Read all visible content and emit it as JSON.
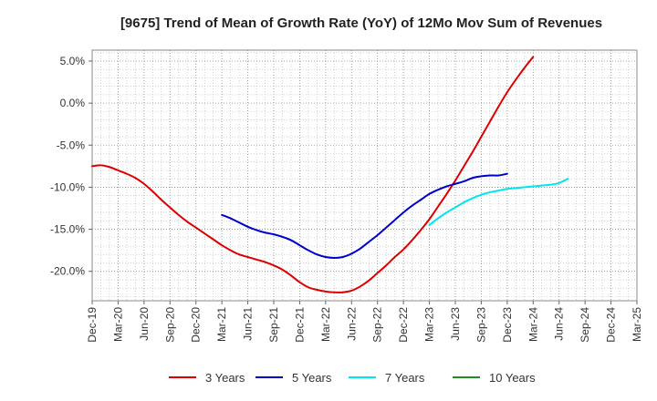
{
  "chart_data": {
    "type": "line",
    "title": "[9675]  Trend of Mean of Growth Rate (YoY) of 12Mo Mov Sum of Revenues",
    "xlabel": "",
    "ylabel": "",
    "ylim": [
      -23.5,
      6.3
    ],
    "grid": true,
    "legend_position": "bottom",
    "x_ticks": [
      "Dec-19",
      "Mar-20",
      "Jun-20",
      "Sep-20",
      "Dec-20",
      "Mar-21",
      "Jun-21",
      "Sep-21",
      "Dec-21",
      "Mar-22",
      "Jun-22",
      "Sep-22",
      "Dec-22",
      "Mar-23",
      "Jun-23",
      "Sep-23",
      "Dec-23",
      "Mar-24",
      "Jun-24",
      "Sep-24",
      "Dec-24",
      "Mar-25"
    ],
    "y_ticks": [
      {
        "value": 5,
        "label": "5.0%"
      },
      {
        "value": 0,
        "label": "0.0%"
      },
      {
        "value": -5,
        "label": "-5.0%"
      },
      {
        "value": -10,
        "label": "-10.0%"
      },
      {
        "value": -15,
        "label": "-15.0%"
      },
      {
        "value": -20,
        "label": "-20.0%"
      }
    ],
    "series": [
      {
        "name": "3 Years",
        "color": "#dd0000",
        "start_month": 0,
        "values": [
          -7.5,
          -7.4,
          -7.6,
          -8.0,
          -8.4,
          -8.9,
          -9.6,
          -10.5,
          -11.5,
          -12.4,
          -13.3,
          -14.1,
          -14.8,
          -15.5,
          -16.2,
          -16.9,
          -17.5,
          -18.0,
          -18.3,
          -18.6,
          -18.9,
          -19.3,
          -19.8,
          -20.5,
          -21.3,
          -21.9,
          -22.2,
          -22.4,
          -22.5,
          -22.5,
          -22.3,
          -21.8,
          -21.1,
          -20.2,
          -19.3,
          -18.3,
          -17.4,
          -16.3,
          -15.1,
          -13.8,
          -12.3,
          -10.8,
          -9.2,
          -7.5,
          -5.8,
          -4.0,
          -2.2,
          -0.4,
          1.3,
          2.8,
          4.2,
          5.5
        ]
      },
      {
        "name": "5 Years",
        "color": "#0000cc",
        "start_month": 15,
        "values": [
          -13.3,
          -13.7,
          -14.2,
          -14.7,
          -15.1,
          -15.4,
          -15.6,
          -15.9,
          -16.3,
          -16.9,
          -17.5,
          -18.0,
          -18.3,
          -18.4,
          -18.3,
          -17.9,
          -17.3,
          -16.5,
          -15.7,
          -14.8,
          -13.9,
          -13.0,
          -12.2,
          -11.5,
          -10.8,
          -10.3,
          -9.9,
          -9.6,
          -9.3,
          -8.9,
          -8.7,
          -8.6,
          -8.6,
          -8.4
        ]
      },
      {
        "name": "7 Years",
        "color": "#00e5ee",
        "start_month": 39,
        "values": [
          -14.5,
          -13.7,
          -13.0,
          -12.4,
          -11.8,
          -11.3,
          -10.9,
          -10.6,
          -10.4,
          -10.2,
          -10.1,
          -10.0,
          -9.9,
          -9.8,
          -9.7,
          -9.5,
          -9.0
        ]
      },
      {
        "name": "10 Years",
        "color": "#228b22",
        "start_month": 0,
        "values": []
      }
    ]
  }
}
